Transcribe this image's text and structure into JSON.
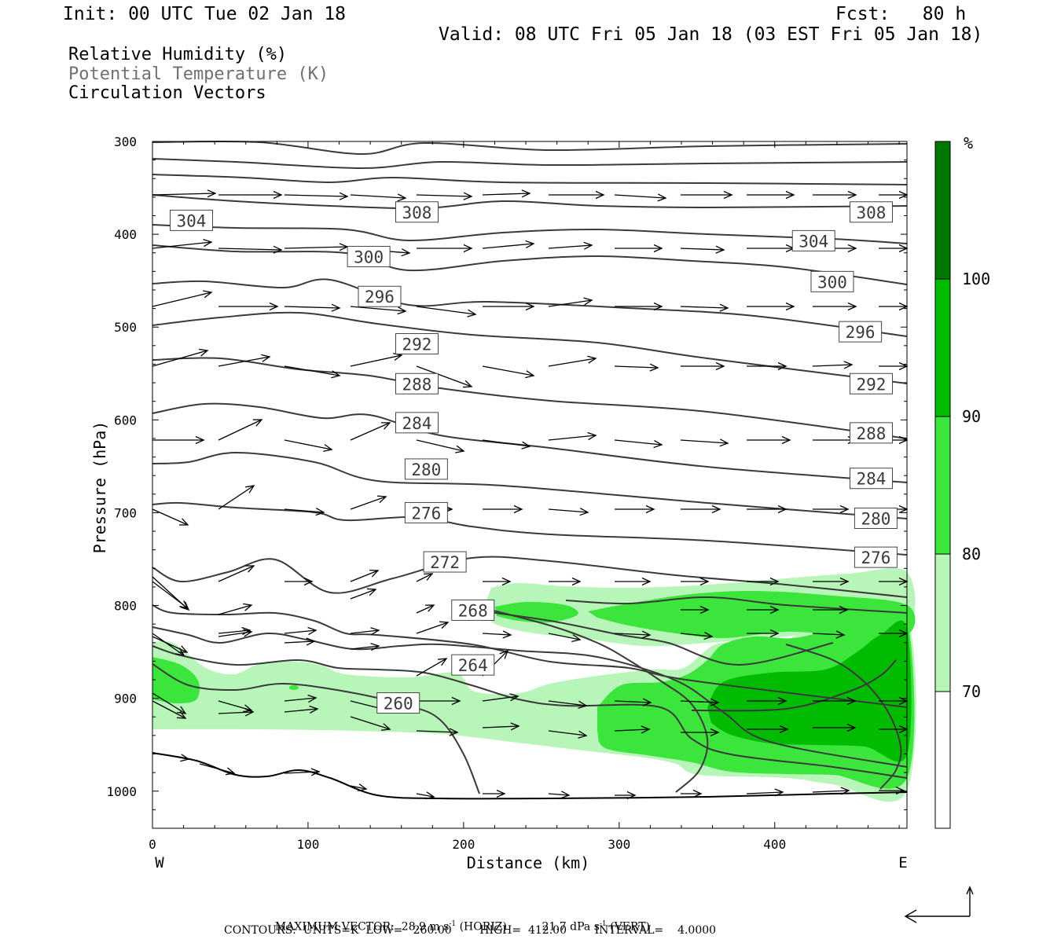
{
  "header": {
    "init": "Init: 00 UTC Tue 02 Jan 18",
    "fcst": "Fcst:   80 h",
    "valid": "Valid: 08 UTC Fri 05 Jan 18 (03 EST Fri 05 Jan 18)"
  },
  "fields": {
    "rh": "Relative Humidity (%)",
    "theta": "Potential Temperature (K)",
    "vectors": "Circulation Vectors"
  },
  "footer": {
    "max_vector_label": "MAXIMUM VECTOR:",
    "max_horiz": "28.9 m s",
    "horiz_tag": "(HORIZ)",
    "max_vert": "21.7 dPa s",
    "vert_tag": "(VERT)",
    "exponent": "-1",
    "contours": "CONTOURS:  UNITS=K  LOW=   260.00        HIGH=  412.00        INTERVAL=    4.0000"
  },
  "colors": {
    "rh_70_80": "#b8f5b8",
    "rh_80_90": "#3ce53c",
    "rh_90_100": "#00bb00",
    "rh_100_plus": "#007700",
    "contour": "#3a3a3a",
    "vector": "#000000"
  },
  "chart_data": {
    "type": "contour",
    "xlabel": "Distance (km)",
    "ylabel": "Pressure (hPa)",
    "xlim": [
      0,
      485
    ],
    "ylim": [
      1040,
      300
    ],
    "x_ticks": [
      0,
      100,
      200,
      300,
      400
    ],
    "y_ticks": [
      300,
      400,
      500,
      600,
      700,
      800,
      900,
      1000
    ],
    "x_end_labels": {
      "left": "W",
      "right": "E"
    },
    "colorbar": {
      "unit": "%",
      "ticks": [
        70,
        80,
        90,
        100
      ]
    },
    "theta_labels": [
      {
        "text": "304",
        "x": 25,
        "p": 385
      },
      {
        "text": "308",
        "x": 170,
        "p": 376
      },
      {
        "text": "308",
        "x": 462,
        "p": 376
      },
      {
        "text": "304",
        "x": 425,
        "p": 407
      },
      {
        "text": "300",
        "x": 139,
        "p": 424
      },
      {
        "text": "300",
        "x": 437,
        "p": 451
      },
      {
        "text": "296",
        "x": 146,
        "p": 467
      },
      {
        "text": "296",
        "x": 455,
        "p": 505
      },
      {
        "text": "292",
        "x": 170,
        "p": 518
      },
      {
        "text": "292",
        "x": 462,
        "p": 561
      },
      {
        "text": "288",
        "x": 170,
        "p": 561
      },
      {
        "text": "288",
        "x": 462,
        "p": 614
      },
      {
        "text": "284",
        "x": 170,
        "p": 603
      },
      {
        "text": "284",
        "x": 462,
        "p": 663
      },
      {
        "text": "280",
        "x": 176,
        "p": 653
      },
      {
        "text": "280",
        "x": 465,
        "p": 706
      },
      {
        "text": "276",
        "x": 176,
        "p": 700
      },
      {
        "text": "276",
        "x": 465,
        "p": 748
      },
      {
        "text": "272",
        "x": 188,
        "p": 753
      },
      {
        "text": "268",
        "x": 206,
        "p": 805
      },
      {
        "text": "264",
        "x": 206,
        "p": 864
      },
      {
        "text": "260",
        "x": 158,
        "p": 905
      }
    ]
  }
}
